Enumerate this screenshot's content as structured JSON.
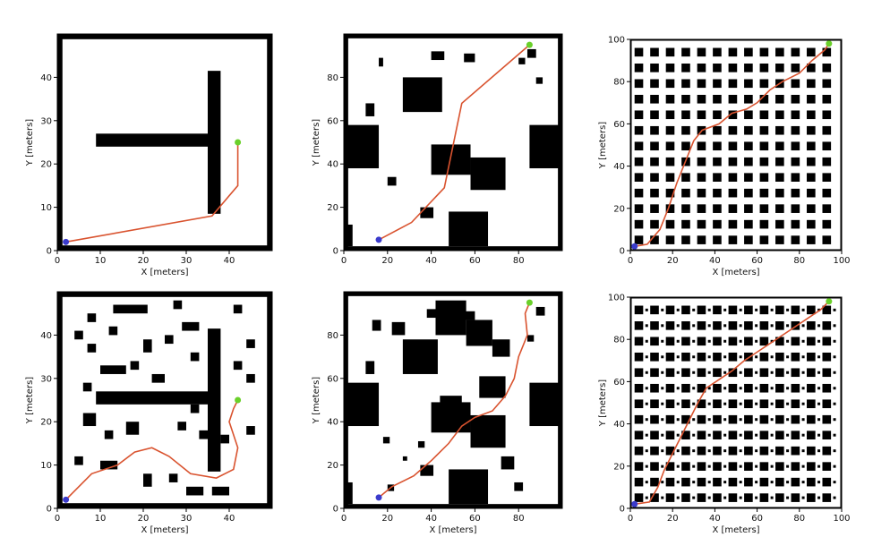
{
  "colors": {
    "path": "#d9532f",
    "start": "#3b3bcc",
    "goal": "#6ad02a",
    "obstacle": "#000000",
    "free": "#ffffff"
  },
  "chart_data": [
    {
      "type": "scatter",
      "xlabel": "X [meters]",
      "ylabel": "Y [meters]",
      "xlim": [
        0,
        50
      ],
      "ylim": [
        0,
        50
      ],
      "xticks": [
        0,
        10,
        20,
        30,
        40
      ],
      "yticks": [
        0,
        10,
        20,
        30,
        40
      ],
      "obstacles": [
        [
          0,
          0,
          50,
          1.2
        ],
        [
          0,
          48.8,
          50,
          1.2
        ],
        [
          0,
          0,
          1.2,
          50
        ],
        [
          48.8,
          0,
          1.2,
          50
        ],
        [
          35,
          8.5,
          3,
          33
        ],
        [
          9,
          24,
          26,
          3
        ]
      ],
      "path": [
        [
          2,
          2
        ],
        [
          36,
          8
        ],
        [
          42,
          15
        ],
        [
          42,
          25
        ]
      ],
      "start": [
        2,
        2
      ],
      "goal": [
        42,
        25
      ]
    },
    {
      "type": "scatter",
      "xlabel": "",
      "ylabel": "Y [meters]",
      "xlim": [
        0,
        100
      ],
      "ylim": [
        0,
        100
      ],
      "xticks": [
        0,
        20,
        40,
        60,
        80
      ],
      "yticks": [
        0,
        20,
        40,
        60,
        80
      ],
      "obstacles": [
        [
          0,
          0,
          100,
          2
        ],
        [
          0,
          98,
          100,
          2
        ],
        [
          0,
          0,
          2,
          100
        ],
        [
          98,
          0,
          2,
          100
        ],
        [
          0,
          2,
          4,
          10
        ],
        [
          1,
          38,
          15,
          20
        ],
        [
          10,
          62,
          4,
          6
        ],
        [
          27,
          64,
          18,
          16
        ],
        [
          40,
          88,
          6,
          4
        ],
        [
          55,
          87,
          5,
          4
        ],
        [
          40,
          35,
          18,
          14
        ],
        [
          58,
          28,
          16,
          15
        ],
        [
          48,
          2,
          18,
          16
        ],
        [
          85,
          38,
          14,
          20
        ],
        [
          16,
          85,
          2,
          4
        ],
        [
          35,
          15,
          6,
          5
        ],
        [
          20,
          30,
          4,
          4
        ],
        [
          84,
          89,
          4,
          4
        ],
        [
          80,
          86,
          3,
          3
        ],
        [
          88,
          77,
          3,
          3
        ]
      ],
      "path": [
        [
          16,
          5
        ],
        [
          31,
          13
        ],
        [
          46,
          29
        ],
        [
          54,
          68
        ],
        [
          85,
          95
        ]
      ],
      "start": [
        16,
        5
      ],
      "goal": [
        85,
        95
      ]
    },
    {
      "type": "scatter",
      "xlabel": "X [meters]",
      "ylabel": "Y [meters]",
      "xlim": [
        0,
        100
      ],
      "ylim": [
        0,
        100
      ],
      "xticks": [
        0,
        20,
        40,
        60,
        80,
        100
      ],
      "yticks": [
        0,
        20,
        40,
        60,
        80,
        100
      ],
      "obstacles": "regular-grid",
      "path": [
        [
          2,
          2
        ],
        [
          8,
          3
        ],
        [
          14,
          10
        ],
        [
          18,
          20
        ],
        [
          22,
          32
        ],
        [
          26,
          42
        ],
        [
          30,
          52
        ],
        [
          34,
          57
        ],
        [
          42,
          60
        ],
        [
          48,
          65
        ],
        [
          55,
          67
        ],
        [
          60,
          70
        ],
        [
          66,
          76
        ],
        [
          72,
          80
        ],
        [
          80,
          84
        ],
        [
          86,
          90
        ],
        [
          92,
          95
        ],
        [
          94,
          98
        ]
      ],
      "start": [
        2,
        2
      ],
      "goal": [
        94,
        98
      ]
    },
    {
      "type": "scatter",
      "xlabel": "X [meters]",
      "ylabel": "Y [meters]",
      "xlim": [
        0,
        50
      ],
      "ylim": [
        0,
        50
      ],
      "xticks": [
        0,
        10,
        20,
        30,
        40
      ],
      "yticks": [
        0,
        10,
        20,
        30,
        40
      ],
      "obstacles": [
        [
          0,
          0,
          50,
          1.2
        ],
        [
          0,
          48.8,
          50,
          1.2
        ],
        [
          0,
          0,
          1.2,
          50
        ],
        [
          48.8,
          0,
          1.2,
          50
        ],
        [
          35,
          8.5,
          3,
          33
        ],
        [
          9,
          24,
          26,
          3
        ],
        [
          13,
          45,
          8,
          2
        ],
        [
          4,
          39,
          2,
          2
        ],
        [
          7,
          43,
          2,
          2
        ],
        [
          12,
          40,
          2,
          2
        ],
        [
          7,
          36,
          2,
          2
        ],
        [
          10,
          31,
          6,
          2
        ],
        [
          6,
          27,
          2,
          2
        ],
        [
          17,
          32,
          2,
          2
        ],
        [
          22,
          29,
          3,
          2
        ],
        [
          27,
          46,
          2,
          2
        ],
        [
          29,
          41,
          4,
          2
        ],
        [
          31,
          34,
          2,
          2
        ],
        [
          41,
          45,
          2,
          2
        ],
        [
          25,
          38,
          2,
          2
        ],
        [
          44,
          29,
          2,
          2
        ],
        [
          44,
          37,
          2,
          2
        ],
        [
          41,
          32,
          2,
          2
        ],
        [
          6,
          19,
          3,
          3
        ],
        [
          11,
          16,
          2,
          2
        ],
        [
          16,
          17,
          3,
          3
        ],
        [
          28,
          18,
          2,
          2
        ],
        [
          33,
          16,
          2,
          2
        ],
        [
          38,
          15,
          2,
          2
        ],
        [
          44,
          17,
          2,
          2
        ],
        [
          10,
          9,
          4,
          2
        ],
        [
          20,
          5,
          2,
          3
        ],
        [
          26,
          6,
          2,
          2
        ],
        [
          30,
          3,
          4,
          2
        ],
        [
          36,
          3,
          4,
          2
        ],
        [
          4,
          10,
          2,
          2
        ],
        [
          20,
          36,
          2,
          3
        ],
        [
          31,
          22,
          2,
          2
        ]
      ],
      "path": [
        [
          2,
          2
        ],
        [
          8,
          8
        ],
        [
          14,
          10
        ],
        [
          18,
          13
        ],
        [
          22,
          14
        ],
        [
          26,
          12
        ],
        [
          31,
          8
        ],
        [
          37,
          7
        ],
        [
          41,
          9
        ],
        [
          42,
          14
        ],
        [
          40,
          20
        ],
        [
          41,
          23
        ],
        [
          42,
          25
        ]
      ],
      "start": [
        2,
        2
      ],
      "goal": [
        42,
        25
      ]
    },
    {
      "type": "scatter",
      "xlabel": "X [meters]",
      "ylabel": "Y [meters]",
      "xlim": [
        0,
        100
      ],
      "ylim": [
        0,
        100
      ],
      "xticks": [
        0,
        20,
        40,
        60,
        80
      ],
      "yticks": [
        0,
        20,
        40,
        60,
        80
      ],
      "obstacles": [
        [
          0,
          0,
          100,
          2
        ],
        [
          0,
          98,
          100,
          2
        ],
        [
          0,
          0,
          2,
          100
        ],
        [
          98,
          0,
          2,
          100
        ],
        [
          0,
          2,
          4,
          10
        ],
        [
          1,
          38,
          15,
          20
        ],
        [
          10,
          62,
          4,
          6
        ],
        [
          27,
          62,
          16,
          16
        ],
        [
          38,
          88,
          6,
          4
        ],
        [
          55,
          87,
          5,
          4
        ],
        [
          40,
          35,
          18,
          14
        ],
        [
          58,
          28,
          16,
          15
        ],
        [
          48,
          2,
          18,
          16
        ],
        [
          85,
          38,
          14,
          20
        ],
        [
          42,
          80,
          14,
          16
        ],
        [
          56,
          75,
          12,
          12
        ],
        [
          22,
          80,
          6,
          6
        ],
        [
          13,
          82,
          4,
          5
        ],
        [
          44,
          46,
          10,
          6
        ],
        [
          62,
          51,
          12,
          10
        ],
        [
          68,
          70,
          8,
          8
        ],
        [
          88,
          89,
          4,
          4
        ],
        [
          84,
          77,
          3,
          3
        ],
        [
          18,
          30,
          3,
          3
        ],
        [
          27,
          22,
          2,
          2
        ],
        [
          35,
          15,
          6,
          5
        ],
        [
          20,
          8,
          3,
          3
        ],
        [
          34,
          28,
          3,
          3
        ],
        [
          72,
          18,
          6,
          6
        ],
        [
          78,
          8,
          4,
          4
        ]
      ],
      "path": [
        [
          16,
          5
        ],
        [
          22,
          10
        ],
        [
          32,
          15
        ],
        [
          40,
          22
        ],
        [
          48,
          30
        ],
        [
          54,
          38
        ],
        [
          60,
          42
        ],
        [
          68,
          45
        ],
        [
          74,
          52
        ],
        [
          78,
          60
        ],
        [
          80,
          70
        ],
        [
          84,
          80
        ],
        [
          83,
          90
        ],
        [
          85,
          95
        ]
      ],
      "start": [
        16,
        5
      ],
      "goal": [
        85,
        95
      ]
    },
    {
      "type": "scatter",
      "xlabel": "X [meters]",
      "ylabel": "Y [meters]",
      "xlim": [
        0,
        100
      ],
      "ylim": [
        0,
        100
      ],
      "xticks": [
        0,
        20,
        40,
        60,
        80,
        100
      ],
      "yticks": [
        0,
        20,
        40,
        60,
        80,
        100
      ],
      "obstacles": "regular-grid-dots",
      "path": [
        [
          2,
          2
        ],
        [
          9,
          3
        ],
        [
          13,
          10
        ],
        [
          16,
          18
        ],
        [
          20,
          26
        ],
        [
          24,
          34
        ],
        [
          28,
          42
        ],
        [
          32,
          50
        ],
        [
          36,
          57
        ],
        [
          42,
          61
        ],
        [
          48,
          65
        ],
        [
          54,
          70
        ],
        [
          60,
          74
        ],
        [
          66,
          78
        ],
        [
          72,
          82
        ],
        [
          78,
          86
        ],
        [
          84,
          90
        ],
        [
          90,
          94
        ],
        [
          94,
          98
        ]
      ],
      "start": [
        2,
        2
      ],
      "goal": [
        94,
        98
      ]
    }
  ]
}
